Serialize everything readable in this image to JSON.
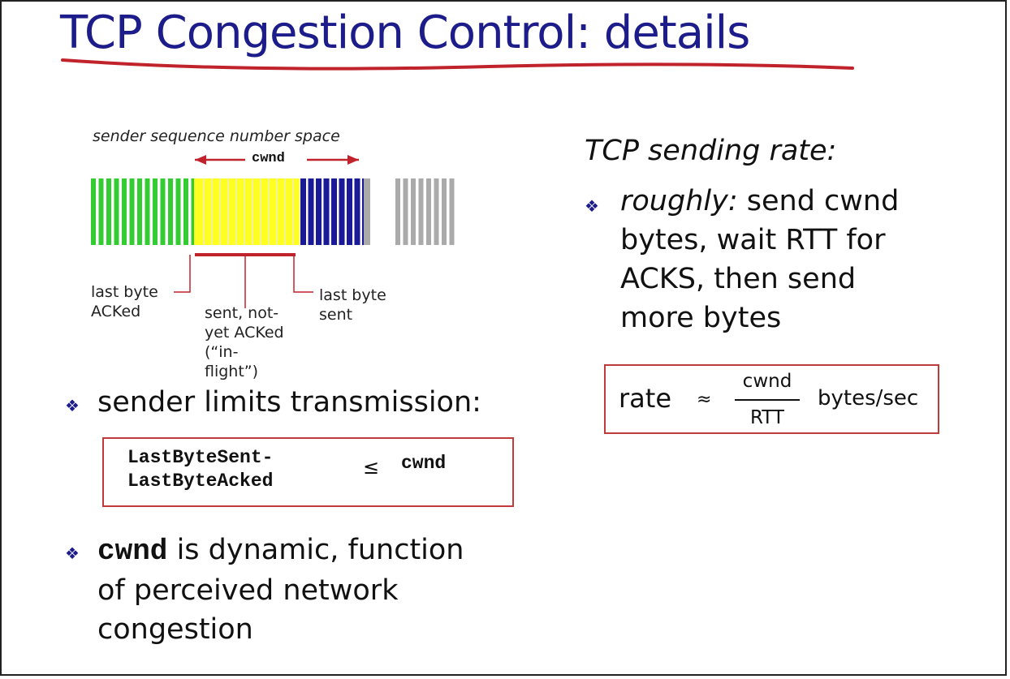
{
  "title": "TCP Congestion Control: details",
  "diagram": {
    "caption": "sender sequence number space",
    "window_label": "cwnd",
    "last_byte_acked": [
      "last byte",
      "ACKed"
    ],
    "in_flight": [
      "sent, not-",
      "yet ACKed",
      "(“in-",
      "flight”)"
    ],
    "last_byte_sent": [
      "last byte",
      "sent"
    ]
  },
  "left": {
    "bullet1": "sender limits transmission:",
    "inequality": {
      "lhs": [
        "LastByteSent-",
        "LastByteAcked"
      ],
      "op": "≤",
      "rhs": "cwnd"
    },
    "bullet2": {
      "code": "cwnd",
      "lines": [
        "is dynamic, function",
        "of perceived network",
        "congestion"
      ]
    }
  },
  "right": {
    "heading": "TCP sending rate:",
    "bullet": {
      "emphasis": "roughly:",
      "lines": [
        "send cwnd",
        "bytes, wait RTT for",
        "ACKS, then send",
        "more bytes"
      ]
    },
    "formula": {
      "lhs": "rate",
      "op": "≈",
      "numerator": "cwnd",
      "denominator": "RTT",
      "unit": "bytes/sec"
    }
  }
}
